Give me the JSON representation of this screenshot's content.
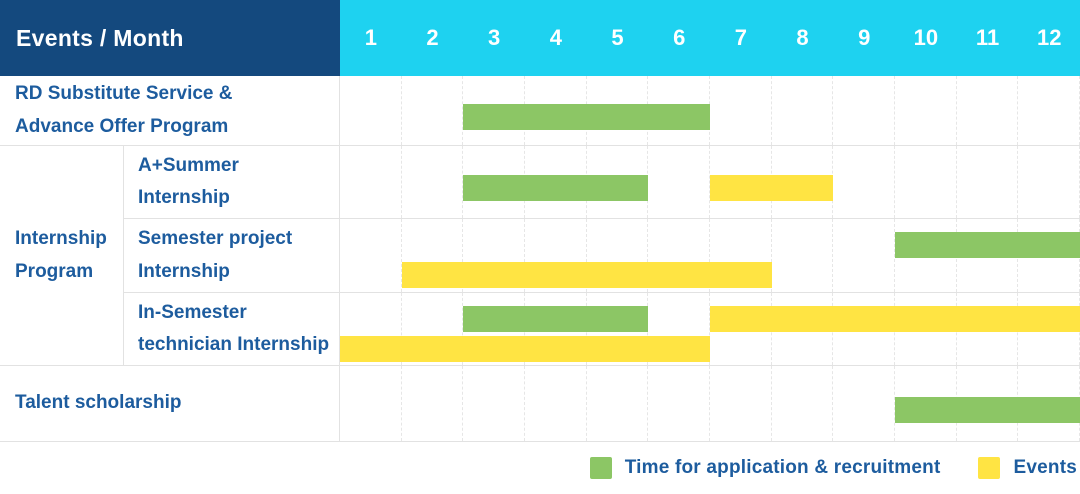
{
  "header": {
    "title": "Events / Month"
  },
  "colors": {
    "navy": "#14497e",
    "cyan": "#1ed2f0",
    "green": "#8cc665",
    "yellow": "#ffe443",
    "blue_text": "#1d5c9e",
    "grid_line": "#e2e2e2",
    "dash_line": "#e6e6e6"
  },
  "chart_data": {
    "type": "gantt",
    "title": "Events / Month",
    "months": [
      "1",
      "2",
      "3",
      "4",
      "5",
      "6",
      "7",
      "8",
      "9",
      "10",
      "11",
      "12"
    ],
    "x_range": [
      1,
      12
    ],
    "grid": "dashed-vertical-month-lines",
    "legend_position": "bottom-right",
    "legend": [
      {
        "key": "application",
        "label": "Time for application & recruitment",
        "color": "#8cc665"
      },
      {
        "key": "event",
        "label": "Events",
        "color": "#ffe443"
      }
    ],
    "groups": [
      {
        "label": "Internship\nProgram",
        "row_indexes": [
          1,
          2,
          3
        ]
      }
    ],
    "rows": [
      {
        "label": "RD Substitute Service &\nAdvance Offer Program",
        "group": null,
        "bars": [
          {
            "type": "application",
            "start_month": 3,
            "end_month": 6,
            "lane": "mid"
          }
        ]
      },
      {
        "label": "A+Summer\nInternship",
        "group": "Internship Program",
        "bars": [
          {
            "type": "application",
            "start_month": 3,
            "end_month": 5,
            "lane": "mid"
          },
          {
            "type": "event",
            "start_month": 7,
            "end_month": 8,
            "lane": "mid"
          }
        ]
      },
      {
        "label": "Semester project\nInternship",
        "group": "Internship Program",
        "bars": [
          {
            "type": "application",
            "start_month": 10,
            "end_month": 12,
            "lane": "top"
          },
          {
            "type": "event",
            "start_month": 2,
            "end_month": 7,
            "lane": "bottom"
          }
        ]
      },
      {
        "label": "In-Semester\ntechnician Internship",
        "group": "Internship Program",
        "bars": [
          {
            "type": "application",
            "start_month": 3,
            "end_month": 5,
            "lane": "top"
          },
          {
            "type": "event",
            "start_month": 7,
            "end_month": 12,
            "lane": "top"
          },
          {
            "type": "event",
            "start_month": 1,
            "end_month": 6,
            "lane": "bottom"
          }
        ]
      },
      {
        "label": "Talent scholarship",
        "group": null,
        "bars": [
          {
            "type": "application",
            "start_month": 10,
            "end_month": 12,
            "lane": "mid"
          }
        ]
      }
    ]
  }
}
